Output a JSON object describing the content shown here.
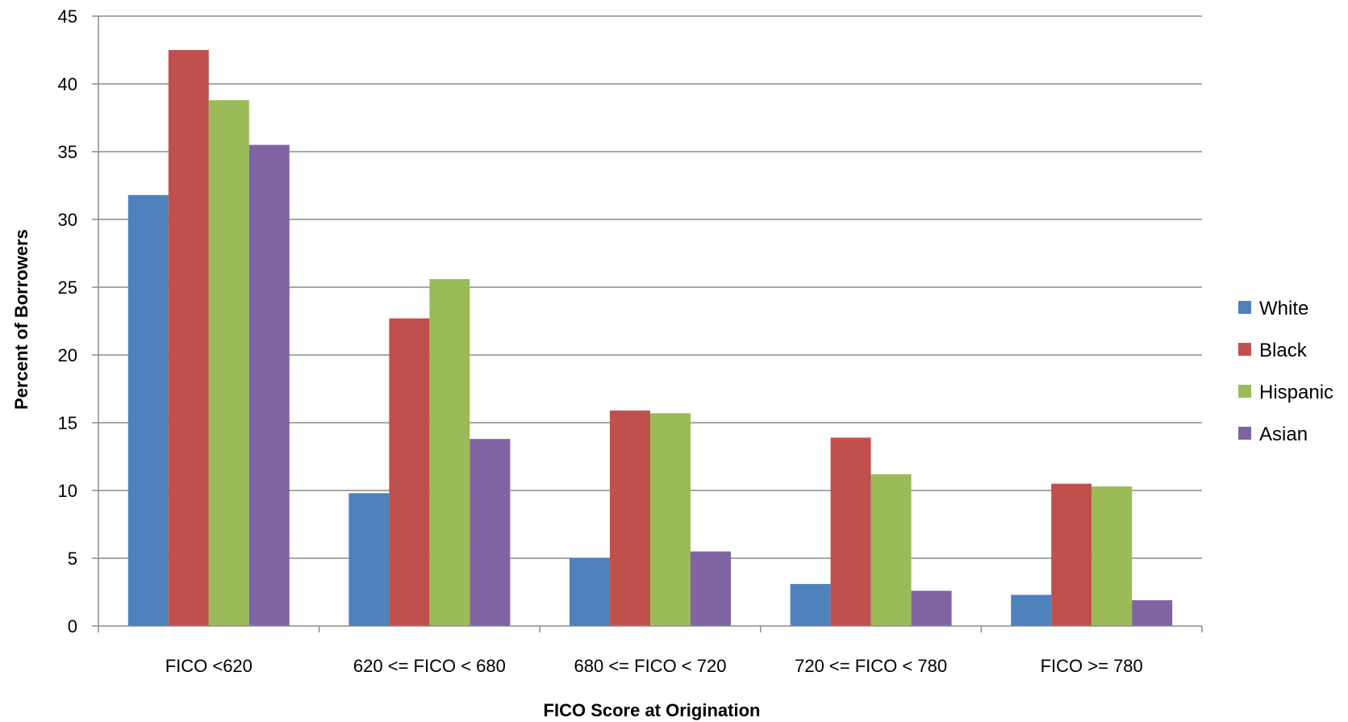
{
  "chart_data": {
    "type": "bar",
    "title": "",
    "xlabel": "FICO Score at Origination",
    "ylabel": "Percent of Borrowers",
    "ylim": [
      0,
      45
    ],
    "yticks": [
      0,
      5,
      10,
      15,
      20,
      25,
      30,
      35,
      40,
      45
    ],
    "grid": true,
    "legend_position": "right",
    "categories": [
      "FICO <620",
      "620 <= FICO < 680",
      "680 <= FICO < 720",
      "720 <= FICO < 780",
      "FICO >= 780"
    ],
    "series": [
      {
        "name": "White",
        "color": "#4f81bd",
        "values": [
          31.8,
          9.8,
          5.0,
          3.1,
          2.3
        ]
      },
      {
        "name": "Black",
        "color": "#c0504d",
        "values": [
          42.5,
          22.7,
          15.9,
          13.9,
          10.5
        ]
      },
      {
        "name": "Hispanic",
        "color": "#9bbb59",
        "values": [
          38.8,
          25.6,
          15.7,
          11.2,
          10.3
        ]
      },
      {
        "name": "Asian",
        "color": "#8064a2",
        "values": [
          35.5,
          13.8,
          5.5,
          2.6,
          1.9
        ]
      }
    ]
  }
}
